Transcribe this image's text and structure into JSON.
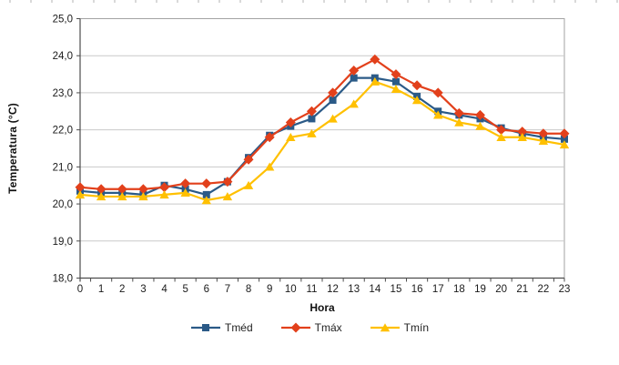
{
  "chart_data": {
    "type": "line",
    "title": "",
    "xlabel": "Hora",
    "ylabel": "Temperatura (°C)",
    "ylim": [
      18.0,
      25.0
    ],
    "grid": "horizontal gridlines at every 1.0 °C",
    "legend_position": "bottom",
    "x_categories": [
      "0",
      "1",
      "2",
      "3",
      "4",
      "5",
      "6",
      "7",
      "8",
      "9",
      "10",
      "11",
      "12",
      "13",
      "14",
      "15",
      "16",
      "17",
      "18",
      "19",
      "20",
      "21",
      "22",
      "23"
    ],
    "y_tick_labels": [
      "25,0",
      "24,0",
      "23,0",
      "22,0",
      "21,0",
      "20,0",
      "19,0",
      "18,0"
    ],
    "series": [
      {
        "name": "Tméd",
        "marker": "square",
        "color": "#2B5A87",
        "values": [
          20.35,
          20.3,
          20.3,
          20.25,
          20.5,
          20.4,
          20.25,
          20.6,
          21.25,
          21.85,
          22.1,
          22.3,
          22.8,
          23.4,
          23.4,
          23.3,
          22.9,
          22.5,
          22.4,
          22.3,
          22.05,
          21.9,
          21.8,
          21.75
        ]
      },
      {
        "name": "Tmáx",
        "marker": "diamond",
        "color": "#E2401B",
        "values": [
          20.45,
          20.4,
          20.4,
          20.4,
          20.45,
          20.55,
          20.55,
          20.6,
          21.2,
          21.8,
          22.2,
          22.5,
          23.0,
          23.6,
          23.9,
          23.5,
          23.2,
          23.0,
          22.45,
          22.4,
          22.0,
          21.95,
          21.9,
          21.9
        ]
      },
      {
        "name": "Tmín",
        "marker": "triangle",
        "color": "#FFC000",
        "values": [
          20.25,
          20.2,
          20.2,
          20.2,
          20.25,
          20.3,
          20.1,
          20.2,
          20.5,
          21.0,
          21.8,
          21.9,
          22.3,
          22.7,
          23.3,
          23.1,
          22.8,
          22.4,
          22.2,
          22.1,
          21.8,
          21.8,
          21.7,
          21.6
        ]
      }
    ]
  },
  "styles": {
    "gridline_color": "#C9C9C9",
    "axis_color": "#4D4D4D",
    "plot_border_color": "#A3A3A3",
    "text_color": "#1A1A1A"
  }
}
